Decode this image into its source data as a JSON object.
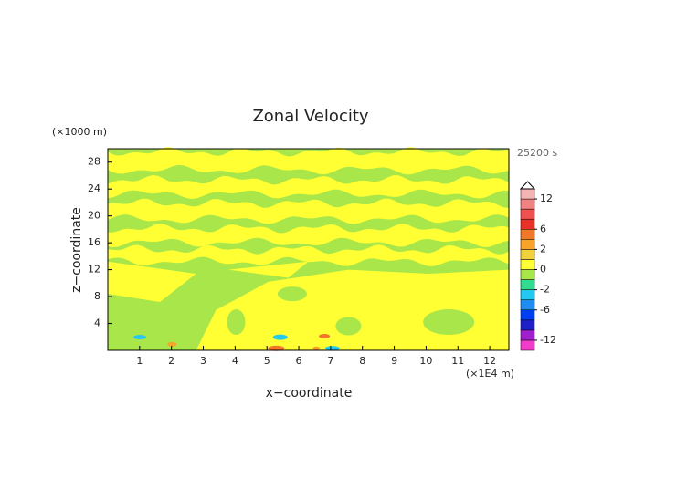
{
  "chart_data": {
    "type": "contour",
    "title": "Zonal Velocity",
    "x_label": "x−coordinate",
    "y_label": "z−coordinate",
    "x_unit_label": "(×1E4 m)",
    "y_unit_label": "(×1000 m)",
    "time_label": "25200 s",
    "xlim": [
      0,
      12.6
    ],
    "xticks": [
      1,
      2,
      3,
      4,
      5,
      6,
      7,
      8,
      9,
      10,
      11,
      12
    ],
    "ylim": [
      0,
      30
    ],
    "yticks": [
      4,
      8,
      12,
      16,
      20,
      24,
      28
    ],
    "colorbar": {
      "levels": [
        -14,
        -12,
        -10,
        -8,
        -6,
        -4,
        -2,
        -1,
        0,
        1,
        2,
        4,
        6,
        8,
        10,
        12,
        14
      ],
      "colors": [
        "#f03cc8",
        "#a020d0",
        "#2020c8",
        "#0040f0",
        "#1e8cf0",
        "#22c8f0",
        "#30dc90",
        "#a8e64a",
        "#ffff33",
        "#f0d23c",
        "#f8a428",
        "#f07828",
        "#e83228",
        "#f05050",
        "#f08282",
        "#f4b4b4"
      ],
      "ticks": [
        12,
        6,
        2,
        0,
        -2,
        -6,
        -12
      ]
    }
  }
}
